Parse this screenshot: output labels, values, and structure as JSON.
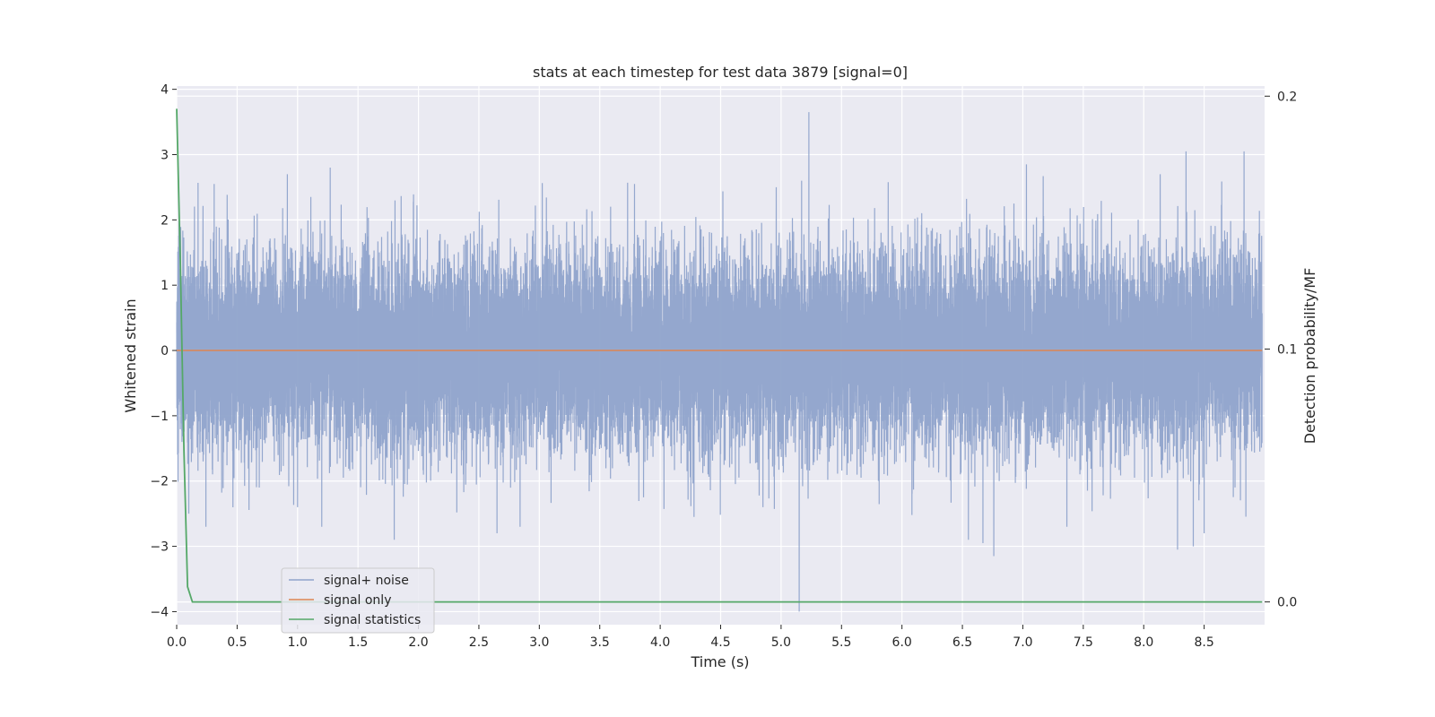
{
  "chart_data": {
    "type": "line",
    "title": "stats at each timestep for test data 3879 [signal=0]",
    "xlabel": "Time (s)",
    "ylabel": "Whitened strain",
    "ylabel_right": "Detection probability/MF",
    "xlim": [
      0,
      9
    ],
    "ylim": [
      -4.2,
      4.05
    ],
    "ylim_right": [
      -0.009,
      0.204
    ],
    "x_ticks": [
      0.0,
      0.5,
      1.0,
      1.5,
      2.0,
      2.5,
      3.0,
      3.5,
      4.0,
      4.5,
      5.0,
      5.5,
      6.0,
      6.5,
      7.0,
      7.5,
      8.0,
      8.5
    ],
    "x_tick_labels": [
      "0.0",
      "0.5",
      "1.0",
      "1.5",
      "2.0",
      "2.5",
      "3.0",
      "3.5",
      "4.0",
      "4.5",
      "5.0",
      "5.5",
      "6.0",
      "6.5",
      "7.0",
      "7.5",
      "8.0",
      "8.5"
    ],
    "y_ticks": [
      -4,
      -3,
      -2,
      -1,
      0,
      1,
      2,
      3,
      4
    ],
    "y_tick_labels": [
      "−4",
      "−3",
      "−2",
      "−1",
      "0",
      "1",
      "2",
      "3",
      "4"
    ],
    "y_ticks_right": [
      0.0,
      0.1,
      0.2
    ],
    "y_tick_labels_right": [
      "0.0",
      "0.1",
      "0.2"
    ],
    "grid": true,
    "legend_position": "lower-left",
    "series": [
      {
        "name": "signal+ noise",
        "color": "#8fa3cb",
        "axis": "left",
        "kind": "noise",
        "sample_rate": 2048,
        "duration": 8.98,
        "std": 0.75,
        "peaks": [
          {
            "x": 5.15,
            "y": -4.0
          },
          {
            "x": 5.23,
            "y": 3.65
          },
          {
            "x": 8.35,
            "y": 3.05
          },
          {
            "x": 8.83,
            "y": 3.05
          },
          {
            "x": 7.03,
            "y": 2.85
          },
          {
            "x": 1.27,
            "y": 2.8
          },
          {
            "x": 6.76,
            "y": -3.15
          },
          {
            "x": 8.28,
            "y": -3.05
          },
          {
            "x": 6.67,
            "y": -2.95
          },
          {
            "x": 8.41,
            "y": -3.0
          },
          {
            "x": 1.8,
            "y": -2.9
          },
          {
            "x": 1.0,
            "y": -2.4
          },
          {
            "x": 1.2,
            "y": -2.7
          },
          {
            "x": 2.65,
            "y": -2.8
          },
          {
            "x": 4.85,
            "y": -2.4
          },
          {
            "x": 6.55,
            "y": -2.9
          },
          {
            "x": 8.5,
            "y": -2.8
          },
          {
            "x": 0.1,
            "y": -2.5
          },
          {
            "x": 4.28,
            "y": -2.55
          },
          {
            "x": 4.96,
            "y": 2.5
          },
          {
            "x": 5.17,
            "y": 2.6
          },
          {
            "x": 0.31,
            "y": 2.55
          }
        ]
      },
      {
        "name": "signal only",
        "color": "#dd8452",
        "axis": "left",
        "x": [
          0,
          8.98
        ],
        "y": [
          0,
          0
        ]
      },
      {
        "name": "signal statistics",
        "color": "#55a868",
        "axis": "right",
        "x": [
          0.0,
          0.03,
          0.06,
          0.09,
          0.13,
          8.98
        ],
        "y": [
          0.195,
          0.135,
          0.06,
          0.006,
          0.0,
          0.0
        ]
      }
    ]
  }
}
